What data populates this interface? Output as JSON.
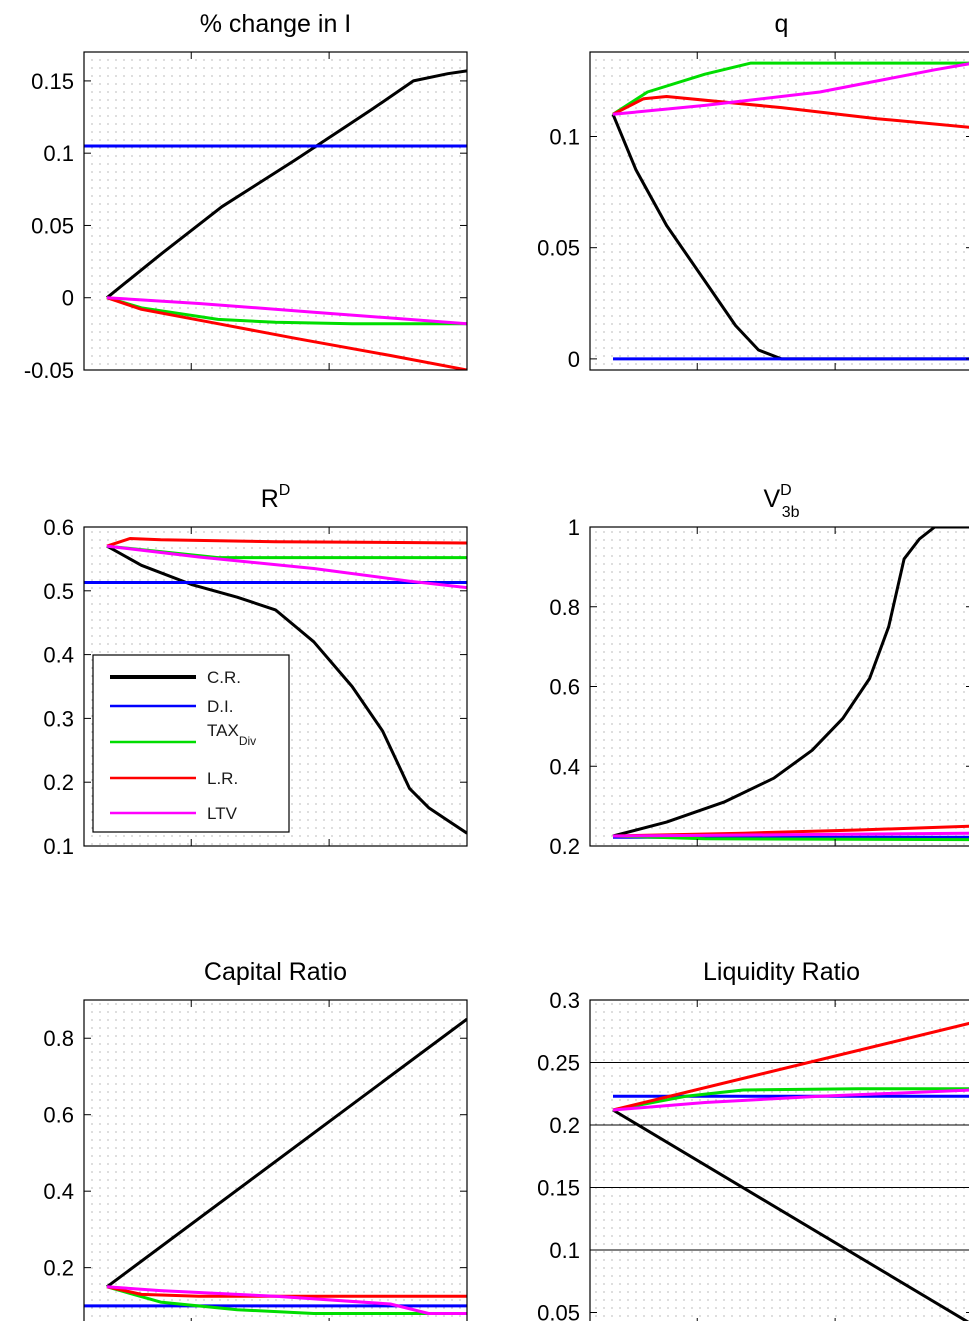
{
  "chart_data": [
    {
      "type": "line",
      "title": "% change in I",
      "xlim": [
        0,
        1
      ],
      "ylim": [
        -0.05,
        0.17
      ],
      "yticks": [
        "0.15",
        "0.1",
        "0.05",
        "0",
        "-0.05"
      ],
      "ytick_values": [
        0.15,
        0.1,
        0.05,
        0,
        -0.05
      ],
      "xtick_values": [
        0.28,
        0.64
      ],
      "grid": "dotted",
      "series": [
        {
          "name": "C.R.",
          "color": "#000000",
          "x": [
            0.06,
            0.2,
            0.36,
            0.55,
            0.75,
            0.86,
            0.95,
            1.0
          ],
          "y": [
            0.0,
            0.03,
            0.063,
            0.095,
            0.13,
            0.15,
            0.155,
            0.157
          ]
        },
        {
          "name": "D.I.",
          "color": "#0000ff",
          "x": [
            0.0,
            1.0
          ],
          "y": [
            0.105,
            0.105
          ]
        },
        {
          "name": "TAX_Div",
          "color": "#00dd00",
          "x": [
            0.06,
            0.15,
            0.35,
            0.5,
            0.7,
            1.0
          ],
          "y": [
            0.0,
            -0.007,
            -0.015,
            -0.017,
            -0.018,
            -0.018
          ]
        },
        {
          "name": "L.R.",
          "color": "#ff0000",
          "x": [
            0.06,
            0.15,
            0.35,
            0.55,
            0.8,
            1.0
          ],
          "y": [
            0.0,
            -0.008,
            -0.018,
            -0.028,
            -0.04,
            -0.05
          ]
        },
        {
          "name": "LTV",
          "color": "#ff00ff",
          "x": [
            0.06,
            0.3,
            0.6,
            1.0
          ],
          "y": [
            0.0,
            -0.004,
            -0.01,
            -0.018
          ]
        }
      ]
    },
    {
      "type": "line",
      "title": "q",
      "xlim": [
        0,
        1
      ],
      "ylim": [
        -0.005,
        0.138
      ],
      "yticks": [
        "0.1",
        "0.05",
        "0"
      ],
      "ytick_values": [
        0.1,
        0.05,
        0
      ],
      "xtick_values": [
        0.28,
        0.64
      ],
      "grid": "dotted",
      "series": [
        {
          "name": "C.R.",
          "color": "#000000",
          "x": [
            0.06,
            0.12,
            0.2,
            0.3,
            0.38,
            0.44,
            0.5,
            1.0
          ],
          "y": [
            0.11,
            0.085,
            0.06,
            0.035,
            0.015,
            0.004,
            0.0,
            0.0
          ]
        },
        {
          "name": "D.I.",
          "color": "#0000ff",
          "x": [
            0.06,
            1.0
          ],
          "y": [
            0.0,
            0.0
          ]
        },
        {
          "name": "TAX_Div",
          "color": "#00dd00",
          "x": [
            0.06,
            0.15,
            0.3,
            0.42,
            1.0
          ],
          "y": [
            0.11,
            0.12,
            0.128,
            0.133,
            0.133
          ]
        },
        {
          "name": "L.R.",
          "color": "#ff0000",
          "x": [
            0.06,
            0.14,
            0.2,
            0.5,
            0.75,
            1.0
          ],
          "y": [
            0.11,
            0.117,
            0.118,
            0.113,
            0.108,
            0.104
          ]
        },
        {
          "name": "LTV",
          "color": "#ff00ff",
          "x": [
            0.06,
            0.3,
            0.6,
            0.9,
            1.0
          ],
          "y": [
            0.11,
            0.114,
            0.12,
            0.13,
            0.133
          ]
        }
      ]
    },
    {
      "type": "line",
      "title": "R",
      "title_superscript": "D",
      "xlim": [
        0,
        1
      ],
      "ylim": [
        0.1,
        0.6
      ],
      "yticks": [
        "0.6",
        "0.5",
        "0.4",
        "0.3",
        "0.2",
        "0.1"
      ],
      "ytick_values": [
        0.6,
        0.5,
        0.4,
        0.3,
        0.2,
        0.1
      ],
      "xtick_values": [
        0.28,
        0.64
      ],
      "grid": "dotted",
      "legend": "lower-left",
      "series": [
        {
          "name": "C.R.",
          "color": "#000000",
          "x": [
            0.06,
            0.15,
            0.28,
            0.4,
            0.5,
            0.6,
            0.7,
            0.78,
            0.85,
            0.9,
            0.95,
            1.0
          ],
          "y": [
            0.57,
            0.54,
            0.51,
            0.49,
            0.47,
            0.42,
            0.35,
            0.28,
            0.19,
            0.16,
            0.14,
            0.12
          ]
        },
        {
          "name": "D.I.",
          "color": "#0000ff",
          "x": [
            0.0,
            1.0
          ],
          "y": [
            0.513,
            0.513
          ]
        },
        {
          "name": "TAX_Div",
          "color": "#00dd00",
          "x": [
            0.06,
            0.35,
            0.5,
            1.0
          ],
          "y": [
            0.57,
            0.552,
            0.552,
            0.552
          ]
        },
        {
          "name": "L.R.",
          "color": "#ff0000",
          "x": [
            0.06,
            0.12,
            0.2,
            0.5,
            1.0
          ],
          "y": [
            0.57,
            0.582,
            0.58,
            0.577,
            0.575
          ]
        },
        {
          "name": "LTV",
          "color": "#ff00ff",
          "x": [
            0.06,
            0.3,
            0.6,
            0.85,
            1.0
          ],
          "y": [
            0.57,
            0.553,
            0.535,
            0.515,
            0.505
          ]
        }
      ]
    },
    {
      "type": "line",
      "title": "V",
      "title_superscript": "D",
      "title_subscript": "3b",
      "xlim": [
        0,
        1
      ],
      "ylim": [
        0.2,
        1.0
      ],
      "yticks": [
        "1",
        "0.8",
        "0.6",
        "0.4",
        "0.2"
      ],
      "ytick_values": [
        1.0,
        0.8,
        0.6,
        0.4,
        0.2
      ],
      "xtick_values": [
        0.28,
        0.64
      ],
      "grid": "dotted",
      "series": [
        {
          "name": "C.R.",
          "color": "#000000",
          "x": [
            0.06,
            0.2,
            0.35,
            0.48,
            0.58,
            0.66,
            0.73,
            0.78,
            0.82,
            0.86,
            0.9,
            0.95,
            1.0
          ],
          "y": [
            0.225,
            0.26,
            0.31,
            0.37,
            0.44,
            0.52,
            0.62,
            0.75,
            0.92,
            0.97,
            1.0,
            1.0,
            1.0
          ]
        },
        {
          "name": "D.I.",
          "color": "#0000ff",
          "x": [
            0.06,
            1.0
          ],
          "y": [
            0.222,
            0.222
          ]
        },
        {
          "name": "TAX_Div",
          "color": "#00dd00",
          "x": [
            0.06,
            0.3,
            1.0
          ],
          "y": [
            0.225,
            0.218,
            0.216
          ]
        },
        {
          "name": "L.R.",
          "color": "#ff0000",
          "x": [
            0.06,
            0.4,
            0.7,
            1.0
          ],
          "y": [
            0.225,
            0.232,
            0.24,
            0.25
          ]
        },
        {
          "name": "LTV",
          "color": "#ff00ff",
          "x": [
            0.06,
            0.5,
            1.0
          ],
          "y": [
            0.225,
            0.228,
            0.232
          ]
        }
      ]
    },
    {
      "type": "line",
      "title": "Capital Ratio",
      "xlim": [
        0,
        1
      ],
      "ylim": [
        0.05,
        0.9
      ],
      "yticks": [
        "0.8",
        "0.6",
        "0.4",
        "0.2"
      ],
      "ytick_values": [
        0.8,
        0.6,
        0.4,
        0.2
      ],
      "xtick_values": [
        0.28,
        0.64
      ],
      "grid": "dotted",
      "series": [
        {
          "name": "C.R.",
          "color": "#000000",
          "x": [
            0.06,
            1.0
          ],
          "y": [
            0.15,
            0.85
          ]
        },
        {
          "name": "D.I.",
          "color": "#0000ff",
          "x": [
            0.0,
            1.0
          ],
          "y": [
            0.1,
            0.1
          ]
        },
        {
          "name": "TAX_Div",
          "color": "#00dd00",
          "x": [
            0.06,
            0.2,
            0.4,
            0.6,
            1.0
          ],
          "y": [
            0.15,
            0.11,
            0.09,
            0.08,
            0.08
          ]
        },
        {
          "name": "L.R.",
          "color": "#ff0000",
          "x": [
            0.06,
            0.15,
            0.3,
            1.0
          ],
          "y": [
            0.15,
            0.13,
            0.125,
            0.125
          ]
        },
        {
          "name": "LTV",
          "color": "#ff00ff",
          "x": [
            0.06,
            0.2,
            0.5,
            0.8,
            0.9,
            1.0
          ],
          "y": [
            0.15,
            0.14,
            0.125,
            0.105,
            0.08,
            0.08
          ]
        }
      ]
    },
    {
      "type": "line",
      "title": "Liquidity Ratio",
      "xlim": [
        0,
        1
      ],
      "ylim": [
        0.04,
        0.3
      ],
      "yticks": [
        "0.3",
        "0.25",
        "0.2",
        "0.15",
        "0.1",
        "0.05"
      ],
      "ytick_values": [
        0.3,
        0.25,
        0.2,
        0.15,
        0.1,
        0.05
      ],
      "xtick_values": [
        0.28,
        0.64
      ],
      "grid": "dotted",
      "gridlines_solid": [
        0.25,
        0.2,
        0.15,
        0.1
      ],
      "series": [
        {
          "name": "C.R.",
          "color": "#000000",
          "x": [
            0.06,
            1.0
          ],
          "y": [
            0.212,
            0.04
          ]
        },
        {
          "name": "D.I.",
          "color": "#0000ff",
          "x": [
            0.06,
            1.0
          ],
          "y": [
            0.223,
            0.223
          ]
        },
        {
          "name": "TAX_Div",
          "color": "#00dd00",
          "x": [
            0.06,
            0.25,
            0.4,
            0.7,
            1.0
          ],
          "y": [
            0.212,
            0.223,
            0.228,
            0.229,
            0.229
          ]
        },
        {
          "name": "L.R.",
          "color": "#ff0000",
          "x": [
            0.06,
            1.0
          ],
          "y": [
            0.212,
            0.282
          ]
        },
        {
          "name": "LTV",
          "color": "#ff00ff",
          "x": [
            0.06,
            0.3,
            0.6,
            1.0
          ],
          "y": [
            0.212,
            0.218,
            0.223,
            0.228
          ]
        }
      ]
    }
  ],
  "legend": {
    "entries": [
      {
        "label": "C.R.",
        "color": "#000000"
      },
      {
        "label": "D.I.",
        "color": "#0000ff"
      },
      {
        "label": "TAX",
        "sub": "Div",
        "color": "#00dd00"
      },
      {
        "label": "L.R.",
        "color": "#ff0000"
      },
      {
        "label": "LTV",
        "color": "#ff00ff"
      }
    ]
  }
}
